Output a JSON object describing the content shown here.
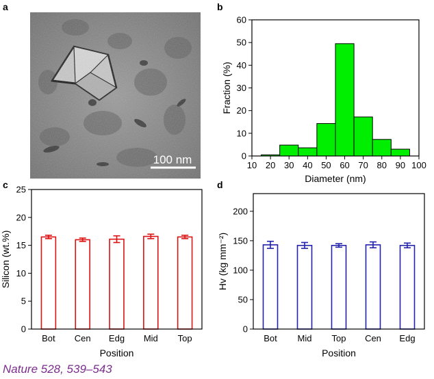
{
  "panel_labels": {
    "a": "a",
    "b": "b",
    "c": "c",
    "d": "d"
  },
  "micrograph": {
    "scale_bar_label": "100 nm"
  },
  "citation": "Nature 528, 539–543",
  "chart_data": [
    {
      "id": "b",
      "type": "bar",
      "title": "",
      "xlabel": "Diameter (nm)",
      "ylabel": "Fraction (%)",
      "xlim": [
        10,
        100
      ],
      "ylim": [
        0,
        60
      ],
      "xticks": [
        10,
        20,
        30,
        40,
        50,
        60,
        70,
        80,
        90,
        100
      ],
      "yticks": [
        0,
        10,
        20,
        30,
        40,
        50,
        60
      ],
      "bin_width": 10,
      "bin_starts": [
        15,
        25,
        35,
        45,
        55,
        65,
        75,
        85
      ],
      "values": [
        0.5,
        4.8,
        3.6,
        14.3,
        49.5,
        17.2,
        7.3,
        3.0
      ],
      "color": "#00ee00"
    },
    {
      "id": "c",
      "type": "bar",
      "title": "",
      "xlabel": "Position",
      "ylabel": "Silicon (wt.%)",
      "ylim": [
        0,
        25
      ],
      "yticks": [
        0,
        5,
        10,
        15,
        20,
        25
      ],
      "categories": [
        "Bot",
        "Cen",
        "Edg",
        "Mid",
        "Top"
      ],
      "values": [
        16.5,
        16.0,
        16.1,
        16.6,
        16.5
      ],
      "errors": [
        0.3,
        0.3,
        0.6,
        0.4,
        0.3
      ],
      "color": "#dd1111"
    },
    {
      "id": "d",
      "type": "bar",
      "title": "",
      "xlabel": "Position",
      "ylabel": "Hv (kg mm⁻²)",
      "ylim": [
        0,
        230
      ],
      "yticks": [
        0,
        50,
        100,
        150,
        200
      ],
      "categories": [
        "Bot",
        "Mid",
        "Top",
        "Cen",
        "Edg"
      ],
      "values": [
        143,
        142,
        142,
        143,
        142
      ],
      "errors": [
        6,
        5,
        3,
        5,
        4
      ],
      "color": "#2222aa"
    }
  ]
}
